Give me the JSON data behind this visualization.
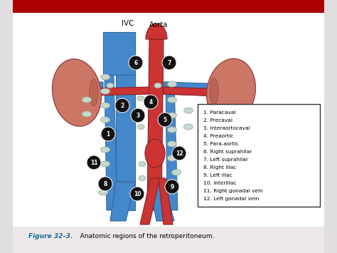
{
  "figure_label": "Figure 32–3.",
  "figure_caption": "   Anatomic regions of the retroperitoneum.",
  "ivc_label": "IVC",
  "aorta_label": "Aorta",
  "legend_items": [
    "1. Paracaval",
    "2. Precaval",
    "3. Interaortocaval",
    "4. Preaortic",
    "5. Para-aortic",
    "6. Right suprahilar",
    "7. Left suprahilar",
    "8. Right iliac",
    "9. Left iliac",
    "10. Interiliac",
    "11. Right gonadal vein",
    "12. Left gonadal vein"
  ],
  "slide_bg": "#e0dede",
  "header_color": "#aa0000",
  "white_area_bg": "#ffffff",
  "caption_color": "#1a6b9a",
  "ivc_color": "#4488cc",
  "aorta_color": "#cc3333",
  "kidney_color": "#cc7766",
  "lymph_fill": "#c8d8cc",
  "lymph_edge": "#9ab0a0",
  "node_fill": "#111111",
  "node_text": "#ffffff",
  "legend_bg": "#ffffff",
  "legend_edge": "#333333"
}
